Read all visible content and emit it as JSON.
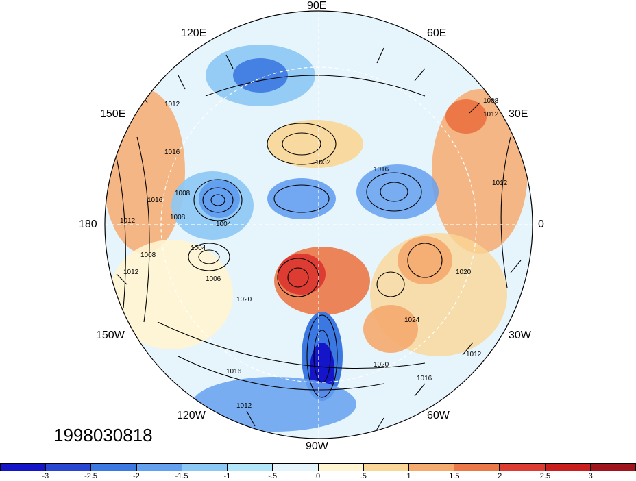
{
  "map": {
    "projection": "north-polar-stereographic",
    "longitude_labels": [
      "90E",
      "60E",
      "30E",
      "0",
      "30W",
      "60W",
      "90W",
      "120W",
      "150W",
      "180",
      "150E",
      "120E"
    ],
    "contour_labels": [
      "1012",
      "1016",
      "1008",
      "1032",
      "1016",
      "1008",
      "1004",
      "1012",
      "1008",
      "1004",
      "1006",
      "1020",
      "1012",
      "1016",
      "1020",
      "1024",
      "1020",
      "1016",
      "1012",
      "1012",
      "1012",
      "1016",
      "1008",
      "1012"
    ],
    "timestamp_label": "1998030818"
  },
  "colorbar": {
    "tick_labels": [
      "-3",
      "-2.5",
      "-2",
      "-1.5",
      "-1",
      "-.5",
      "0",
      ".5",
      "1",
      "1.5",
      "2",
      "2.5",
      "3"
    ],
    "colors": [
      "#1414c8",
      "#2846d2",
      "#3c78e1",
      "#64a0f0",
      "#8cc8f5",
      "#b4e6fa",
      "#e6f5fc",
      "#fff5d2",
      "#fad796",
      "#f5aa6e",
      "#eb7846",
      "#dc3c32",
      "#c81e1e",
      "#a0141e"
    ]
  }
}
